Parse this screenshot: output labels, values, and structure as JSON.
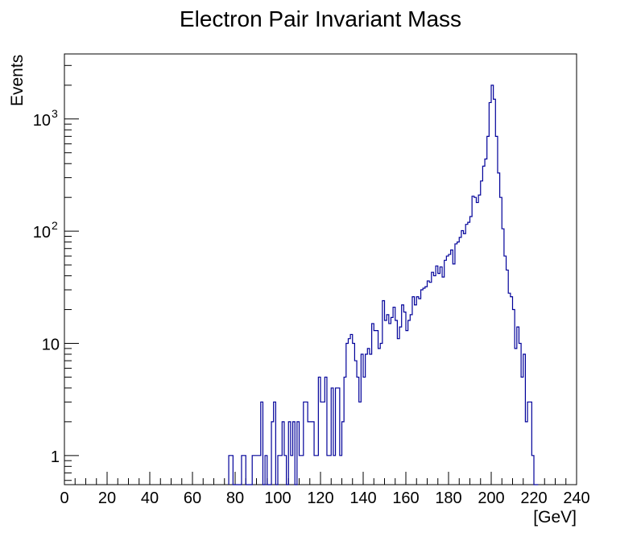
{
  "chart_data": {
    "type": "histogram",
    "title": "Electron Pair Invariant Mass",
    "xlabel": "[GeV]",
    "ylabel": "Events",
    "xlim": [
      0,
      240
    ],
    "ylim": [
      0.55,
      3800
    ],
    "yscale": "log",
    "bin_width": 1,
    "x_ticks": [
      "0",
      "20",
      "40",
      "60",
      "80",
      "100",
      "120",
      "140",
      "160",
      "180",
      "200",
      "220",
      "240"
    ],
    "y_ticks": [
      {
        "value": 1,
        "label": "1"
      },
      {
        "value": 10,
        "label": "10"
      },
      {
        "value": 100,
        "label": "10",
        "sup": "2"
      },
      {
        "value": 1000,
        "label": "10",
        "sup": "3"
      }
    ],
    "line_color": "#000099",
    "grid": false,
    "bins": [
      [
        77,
        1
      ],
      [
        79,
        0
      ],
      [
        81,
        0
      ],
      [
        83,
        1
      ],
      [
        85,
        0
      ],
      [
        87,
        0
      ],
      [
        88,
        1
      ],
      [
        89,
        1
      ],
      [
        90,
        1
      ],
      [
        91,
        1
      ],
      [
        92,
        3
      ],
      [
        93,
        0
      ],
      [
        94,
        1
      ],
      [
        95,
        0
      ],
      [
        96,
        0
      ],
      [
        97,
        2
      ],
      [
        98,
        3
      ],
      [
        99,
        0
      ],
      [
        100,
        1
      ],
      [
        101,
        1
      ],
      [
        102,
        2
      ],
      [
        103,
        1
      ],
      [
        104,
        0
      ],
      [
        105,
        2
      ],
      [
        106,
        1
      ],
      [
        107,
        2
      ],
      [
        108,
        0
      ],
      [
        109,
        2
      ],
      [
        110,
        1
      ],
      [
        111,
        1
      ],
      [
        112,
        3
      ],
      [
        113,
        3
      ],
      [
        114,
        2
      ],
      [
        115,
        2
      ],
      [
        116,
        2
      ],
      [
        117,
        1
      ],
      [
        118,
        1
      ],
      [
        119,
        5
      ],
      [
        120,
        3
      ],
      [
        121,
        3
      ],
      [
        122,
        5
      ],
      [
        123,
        1
      ],
      [
        124,
        1
      ],
      [
        125,
        4
      ],
      [
        126,
        1
      ],
      [
        127,
        4
      ],
      [
        128,
        4
      ],
      [
        129,
        1
      ],
      [
        130,
        2
      ],
      [
        131,
        5
      ],
      [
        132,
        10
      ],
      [
        133,
        11
      ],
      [
        134,
        12
      ],
      [
        135,
        10
      ],
      [
        136,
        7
      ],
      [
        137,
        5
      ],
      [
        138,
        3
      ],
      [
        139,
        8
      ],
      [
        140,
        5
      ],
      [
        141,
        8
      ],
      [
        142,
        9
      ],
      [
        143,
        8
      ],
      [
        144,
        15
      ],
      [
        145,
        13
      ],
      [
        146,
        13
      ],
      [
        147,
        9
      ],
      [
        148,
        10
      ],
      [
        149,
        24
      ],
      [
        150,
        16
      ],
      [
        151,
        18
      ],
      [
        152,
        15
      ],
      [
        153,
        17
      ],
      [
        154,
        21
      ],
      [
        155,
        16
      ],
      [
        156,
        11
      ],
      [
        157,
        14
      ],
      [
        158,
        22
      ],
      [
        159,
        19
      ],
      [
        160,
        13
      ],
      [
        161,
        16
      ],
      [
        162,
        18
      ],
      [
        163,
        26
      ],
      [
        164,
        22
      ],
      [
        165,
        26
      ],
      [
        166,
        25
      ],
      [
        167,
        30
      ],
      [
        168,
        31
      ],
      [
        169,
        32
      ],
      [
        170,
        36
      ],
      [
        171,
        35
      ],
      [
        172,
        43
      ],
      [
        173,
        40
      ],
      [
        174,
        49
      ],
      [
        175,
        42
      ],
      [
        176,
        48
      ],
      [
        177,
        39
      ],
      [
        178,
        55
      ],
      [
        179,
        60
      ],
      [
        180,
        62
      ],
      [
        181,
        68
      ],
      [
        182,
        51
      ],
      [
        183,
        77
      ],
      [
        184,
        80
      ],
      [
        185,
        88
      ],
      [
        186,
        101
      ],
      [
        187,
        95
      ],
      [
        188,
        115
      ],
      [
        189,
        120
      ],
      [
        190,
        135
      ],
      [
        191,
        205
      ],
      [
        192,
        200
      ],
      [
        193,
        180
      ],
      [
        194,
        210
      ],
      [
        195,
        280
      ],
      [
        196,
        380
      ],
      [
        197,
        440
      ],
      [
        198,
        700
      ],
      [
        199,
        1400
      ],
      [
        200,
        2000
      ],
      [
        201,
        1500
      ],
      [
        202,
        700
      ],
      [
        203,
        330
      ],
      [
        204,
        200
      ],
      [
        205,
        105
      ],
      [
        206,
        60
      ],
      [
        207,
        45
      ],
      [
        208,
        28
      ],
      [
        209,
        26
      ],
      [
        210,
        20
      ],
      [
        211,
        9
      ],
      [
        212,
        14
      ],
      [
        213,
        10
      ],
      [
        214,
        5
      ],
      [
        215,
        8
      ],
      [
        216,
        2
      ],
      [
        217,
        3
      ],
      [
        218,
        3
      ],
      [
        219,
        1
      ],
      [
        220,
        0
      ],
      [
        221,
        0
      ]
    ]
  }
}
